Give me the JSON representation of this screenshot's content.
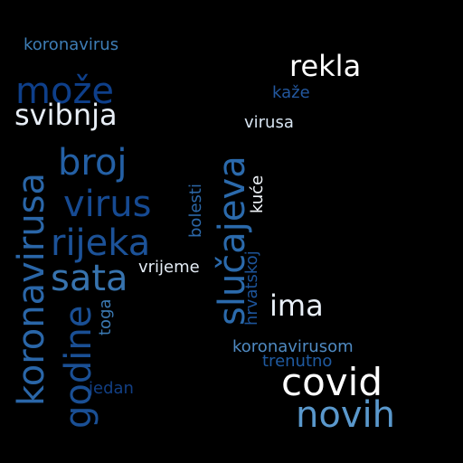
{
  "background_color": "#000000",
  "words": {
    "koronavirus": {
      "text": "koronavirus",
      "color": "#3e7db5"
    },
    "rekla": {
      "text": "rekla",
      "color": "#ffffff"
    },
    "moze": {
      "text": "može",
      "color": "#0e3f8a"
    },
    "kaze": {
      "text": "kaže",
      "color": "#23589f"
    },
    "svibnja": {
      "text": "svibnja",
      "color": "#e8eef6"
    },
    "virusa": {
      "text": "virusa",
      "color": "#d7e4f1"
    },
    "broj": {
      "text": "broj",
      "color": "#2460a5"
    },
    "virus": {
      "text": "virus",
      "color": "#164a92"
    },
    "rijeka": {
      "text": "rijeka",
      "color": "#1c5298"
    },
    "vrijeme": {
      "text": "vrijeme",
      "color": "#e4ecf5"
    },
    "sata": {
      "text": "sata",
      "color": "#3773ae"
    },
    "ima": {
      "text": "ima",
      "color": "#e9f0f8"
    },
    "koronavirusom": {
      "text": "koronavirusom",
      "color": "#4f8ac2"
    },
    "trenutno": {
      "text": "trenutno",
      "color": "#1f5aa0"
    },
    "covid": {
      "text": "covid",
      "color": "#ffffff"
    },
    "jedan": {
      "text": "jedan",
      "color": "#123f84"
    },
    "novih": {
      "text": "novih",
      "color": "#5a98cc"
    },
    "koronavirusa": {
      "text": "koronavirusa",
      "color": "#2a66a8"
    },
    "godine": {
      "text": "godine",
      "color": "#1a4f94"
    },
    "slucajeva": {
      "text": "slučajeva",
      "color": "#2b6aac"
    },
    "bolesti": {
      "text": "bolesti",
      "color": "#2c68a9"
    },
    "kuce": {
      "text": "kuće",
      "color": "#f2f6fb"
    },
    "hrvatskoj": {
      "text": "hrvatskoj",
      "color": "#1d549a"
    },
    "toga": {
      "text": "toga",
      "color": "#3b79b2"
    }
  }
}
